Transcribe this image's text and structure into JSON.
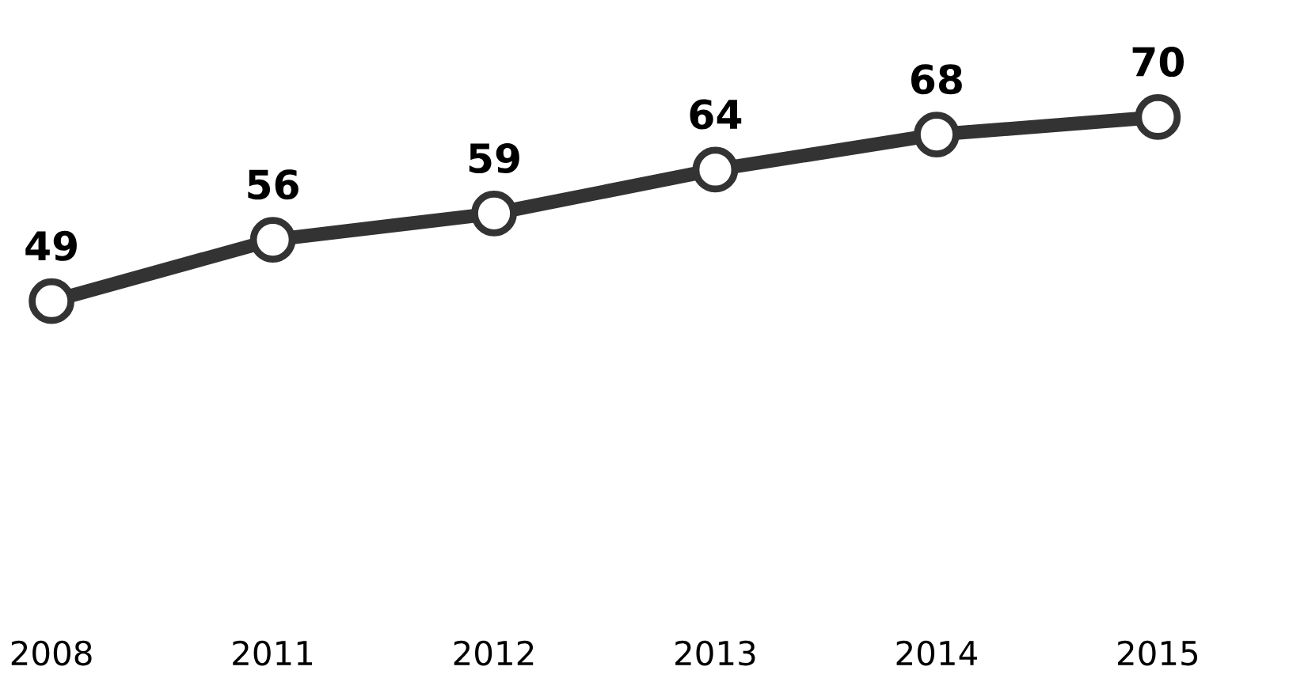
{
  "chart_data": {
    "type": "line",
    "categories": [
      "2008",
      "2011",
      "2012",
      "2013",
      "2014",
      "2015"
    ],
    "series": [
      {
        "color": "#333333",
        "values": [
          49,
          56,
          59,
          64,
          68,
          70
        ]
      }
    ],
    "data_labels": true,
    "marker": "circle",
    "line_style": "solid",
    "tick_labels": "x"
  }
}
